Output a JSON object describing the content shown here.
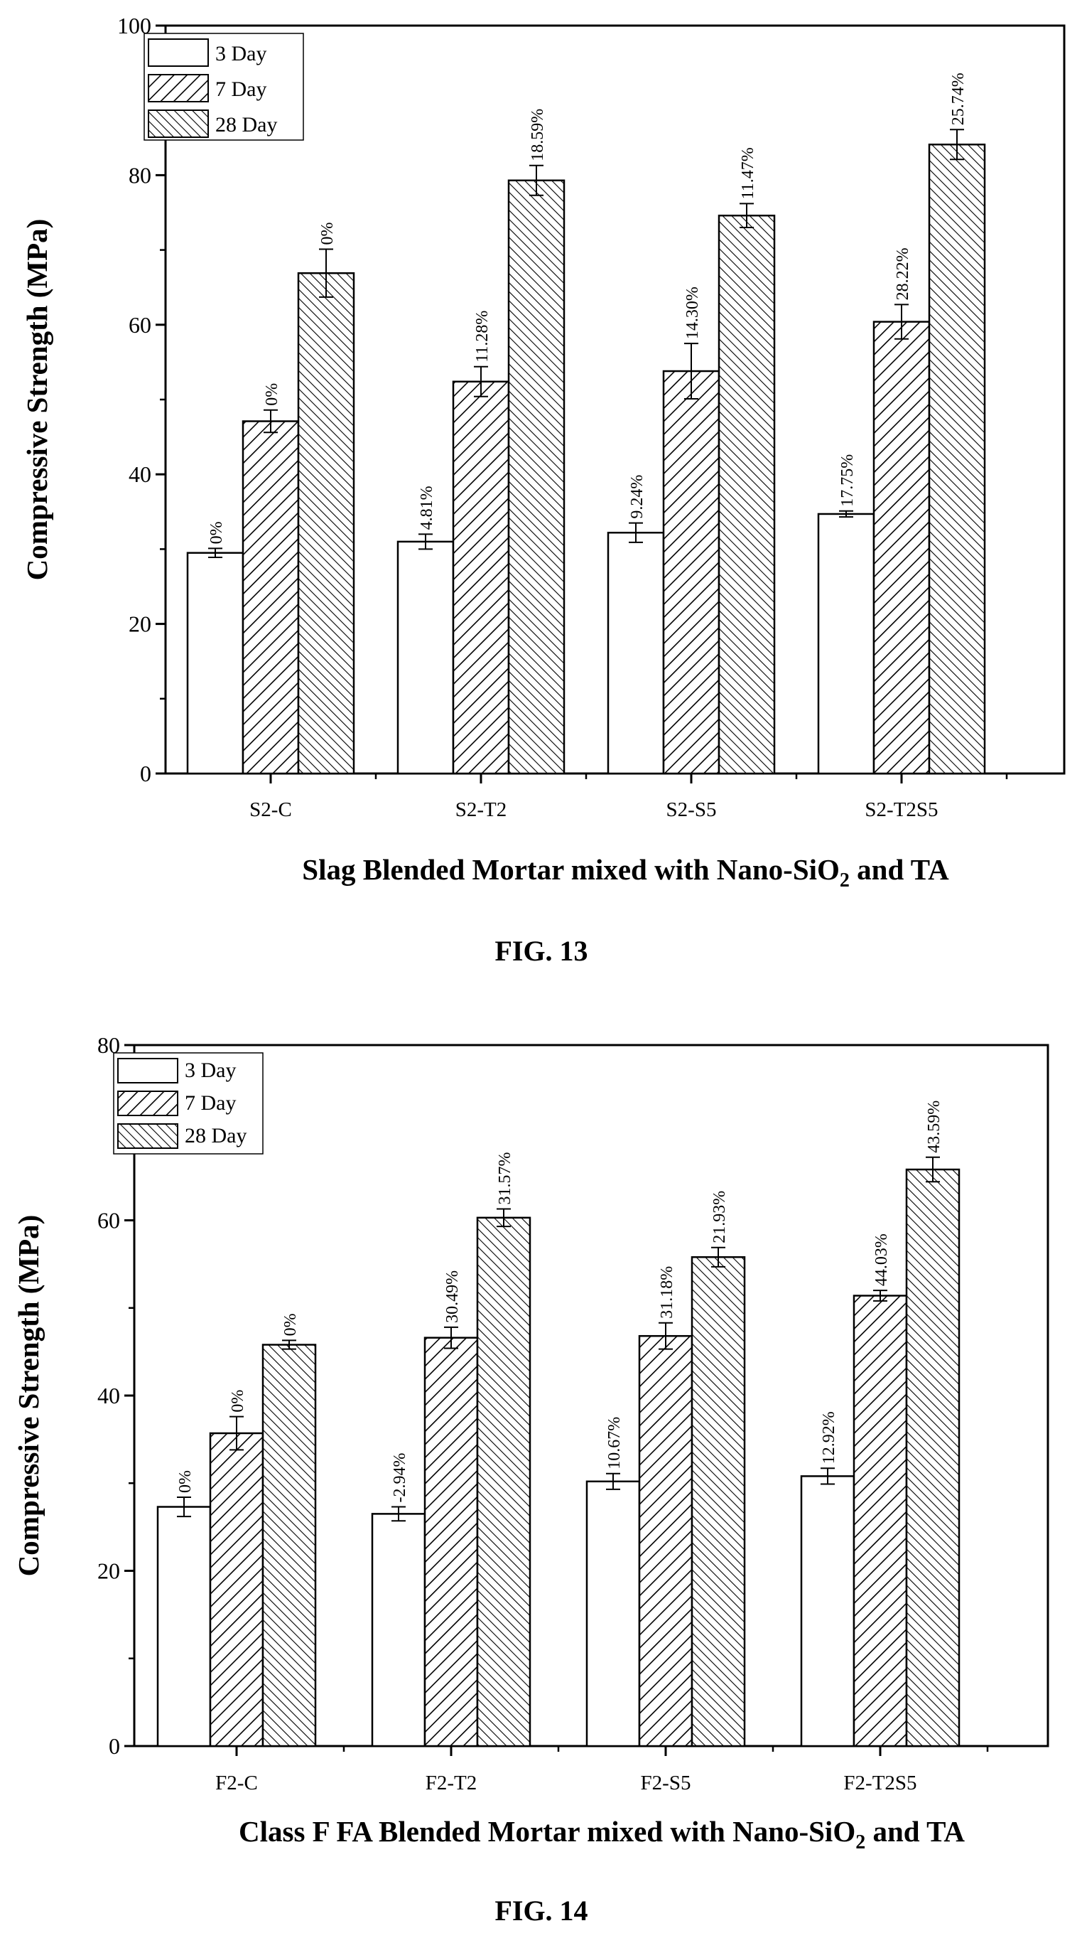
{
  "charts": [
    {
      "figure_label": "FIG. 13",
      "xlabel_main": "Slag Blended Mortar mixed with Nano-SiO",
      "xlabel_sub": "2",
      "xlabel_tail": " and TA",
      "ylabel": "Compressive Strength (MPa)",
      "ytick_labels": [
        "0",
        "20",
        "40",
        "60",
        "80",
        "100"
      ],
      "legend": [
        "3 Day",
        "7 Day",
        "28 Day"
      ]
    },
    {
      "figure_label": "FIG. 14",
      "xlabel_main": "Class F FA Blended Mortar mixed with Nano-SiO",
      "xlabel_sub": "2",
      "xlabel_tail": " and TA",
      "ylabel": "Compressive Strength (MPa)",
      "ytick_labels": [
        "0",
        "20",
        "40",
        "60",
        "80"
      ],
      "legend": [
        "3 Day",
        "7 Day",
        "28 Day"
      ]
    }
  ],
  "chart_data": [
    {
      "type": "bar",
      "title": "",
      "xlabel": "Slag Blended Mortar mixed with Nano-SiO2 and TA",
      "ylabel": "Compressive Strength (MPa)",
      "ylim": [
        0,
        100
      ],
      "grid": false,
      "legend_position": "top-left",
      "categories": [
        "S2-C",
        "S2-T2",
        "S2-S5",
        "S2-T2S5"
      ],
      "series": [
        {
          "name": "3 Day",
          "pattern": "none",
          "values": [
            29.5,
            31.0,
            32.2,
            34.7
          ],
          "errors": [
            0.6,
            1.0,
            1.3,
            0.4
          ],
          "labels": [
            "0%",
            "4.81%",
            "9.24%",
            "17.75%"
          ]
        },
        {
          "name": "7 Day",
          "pattern": "hatch-forward",
          "values": [
            47.1,
            52.4,
            53.8,
            60.4
          ],
          "errors": [
            1.5,
            2.0,
            3.7,
            2.3
          ],
          "labels": [
            "0%",
            "11.28%",
            "14.30%",
            "28.22%"
          ]
        },
        {
          "name": "28 Day",
          "pattern": "hatch-backward",
          "values": [
            66.9,
            79.3,
            74.6,
            84.1
          ],
          "errors": [
            3.2,
            2.0,
            1.6,
            2.0
          ],
          "labels": [
            "0%",
            "18.59%",
            "11.47%",
            "25.74%"
          ]
        }
      ]
    },
    {
      "type": "bar",
      "title": "",
      "xlabel": "Class F FA Blended Mortar mixed with Nano-SiO2 and TA",
      "ylabel": "Compressive Strength (MPa)",
      "ylim": [
        0,
        80
      ],
      "grid": false,
      "legend_position": "top-left",
      "categories": [
        "F2-C",
        "F2-T2",
        "F2-S5",
        "F2-T2S5"
      ],
      "series": [
        {
          "name": "3 Day",
          "pattern": "none",
          "values": [
            27.3,
            26.5,
            30.2,
            30.8
          ],
          "errors": [
            1.1,
            0.8,
            0.9,
            0.9
          ],
          "labels": [
            "0%",
            "-2.94%",
            "10.67%",
            "12.92%"
          ]
        },
        {
          "name": "7 Day",
          "pattern": "hatch-forward",
          "values": [
            35.7,
            46.6,
            46.8,
            51.4
          ],
          "errors": [
            1.9,
            1.2,
            1.5,
            0.6
          ],
          "labels": [
            "0%",
            "30.49%",
            "31.18%",
            "44.03%"
          ]
        },
        {
          "name": "28 Day",
          "pattern": "hatch-backward",
          "values": [
            45.8,
            60.3,
            55.8,
            65.8
          ],
          "errors": [
            0.5,
            1.0,
            1.1,
            1.4
          ],
          "labels": [
            "0%",
            "31.57%",
            "21.93%",
            "43.59%"
          ]
        }
      ]
    }
  ]
}
